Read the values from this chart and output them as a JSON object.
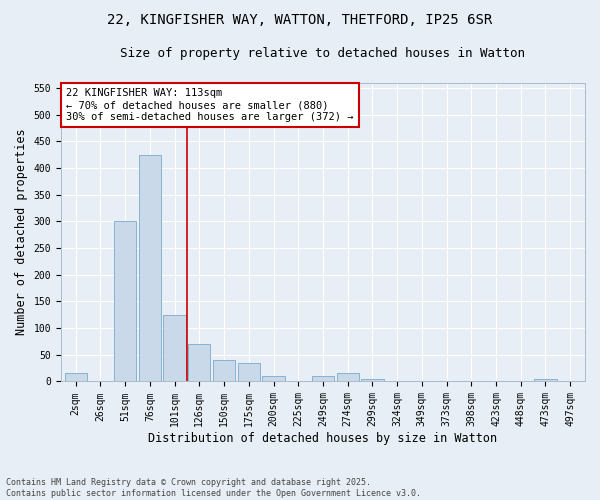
{
  "title_line1": "22, KINGFISHER WAY, WATTON, THETFORD, IP25 6SR",
  "title_line2": "Size of property relative to detached houses in Watton",
  "xlabel": "Distribution of detached houses by size in Watton",
  "ylabel": "Number of detached properties",
  "bar_color": "#c9d9ea",
  "bar_edge_color": "#7aaac8",
  "background_color": "#e8eef5",
  "categories": [
    "2sqm",
    "26sqm",
    "51sqm",
    "76sqm",
    "101sqm",
    "126sqm",
    "150sqm",
    "175sqm",
    "200sqm",
    "225sqm",
    "249sqm",
    "274sqm",
    "299sqm",
    "324sqm",
    "349sqm",
    "373sqm",
    "398sqm",
    "423sqm",
    "448sqm",
    "473sqm",
    "497sqm"
  ],
  "values": [
    15,
    0,
    300,
    425,
    125,
    70,
    40,
    35,
    10,
    0,
    10,
    15,
    5,
    0,
    0,
    0,
    0,
    0,
    0,
    5,
    0
  ],
  "ylim": [
    0,
    560
  ],
  "yticks": [
    0,
    50,
    100,
    150,
    200,
    250,
    300,
    350,
    400,
    450,
    500,
    550
  ],
  "vline_x_index": 4.5,
  "annotation_text": "22 KINGFISHER WAY: 113sqm\n← 70% of detached houses are smaller (880)\n30% of semi-detached houses are larger (372) →",
  "annotation_box_color": "#ffffff",
  "annotation_box_edge_color": "#cc0000",
  "vline_color": "#cc0000",
  "footnote": "Contains HM Land Registry data © Crown copyright and database right 2025.\nContains public sector information licensed under the Open Government Licence v3.0.",
  "grid_color": "#ffffff",
  "title_fontsize": 10,
  "subtitle_fontsize": 9,
  "tick_fontsize": 7,
  "label_fontsize": 8.5,
  "annot_fontsize": 7.5
}
